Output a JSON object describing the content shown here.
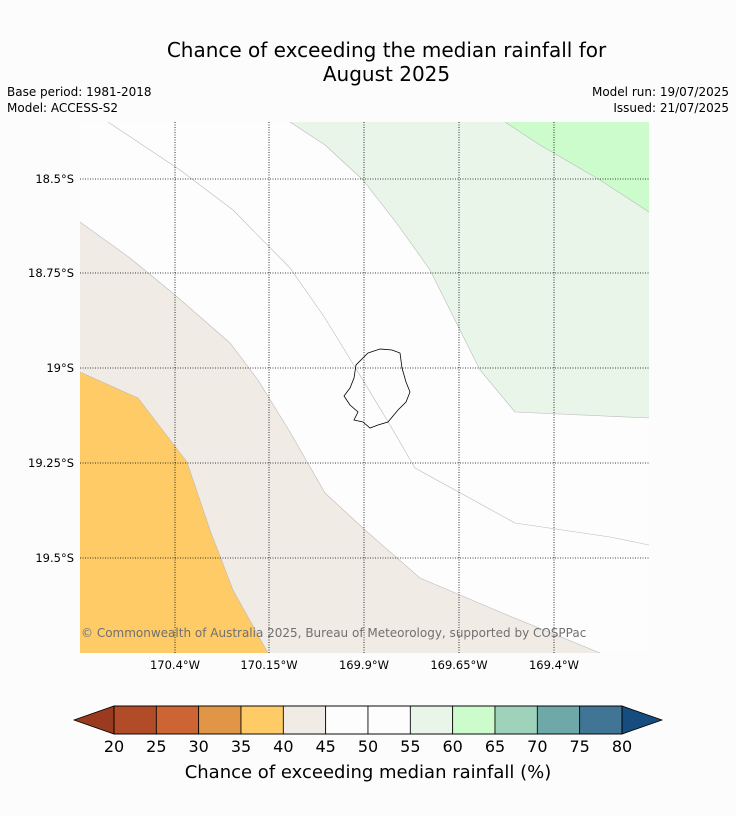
{
  "title_line1": "Chance of exceeding the median rainfall for",
  "title_line2": "August 2025",
  "meta_left": [
    "Base period: 1981-2018",
    "Model: ACCESS-S2"
  ],
  "meta_right": [
    "Model run: 19/07/2025",
    "Issued: 21/07/2025"
  ],
  "map": {
    "latitudes": [
      "18.5°S",
      "18.75°S",
      "19°S",
      "19.25°S",
      "19.5°S"
    ],
    "longitudes": [
      "170.4°W",
      "170.15°W",
      "169.9°W",
      "169.65°W",
      "169.4°W"
    ],
    "copyright": "© Commonwealth of Australia 2025, Bureau of Meteorology, supported by COSPPac",
    "region_colors": {
      "c35_40": "#fecb67",
      "c40_45": "#f1ebe5",
      "c45_55": "#fdfdfd",
      "c55_60": "#e8f5e8",
      "c60_65": "#ccfccc"
    }
  },
  "colorbar": {
    "ticks": [
      "20",
      "25",
      "30",
      "35",
      "40",
      "45",
      "50",
      "55",
      "60",
      "65",
      "70",
      "75",
      "80"
    ],
    "under_color": "#9a3a1e",
    "over_color": "#174c7f",
    "colors": [
      "#b24b27",
      "#cc6533",
      "#e19647",
      "#fecb67",
      "#f1ebe5",
      "#fdfdfd",
      "#fdfdfd",
      "#e8f5e8",
      "#ccfccc",
      "#9fd2bb",
      "#6ea8a8",
      "#417595"
    ],
    "label": "Chance of exceeding median rainfall (%)"
  }
}
